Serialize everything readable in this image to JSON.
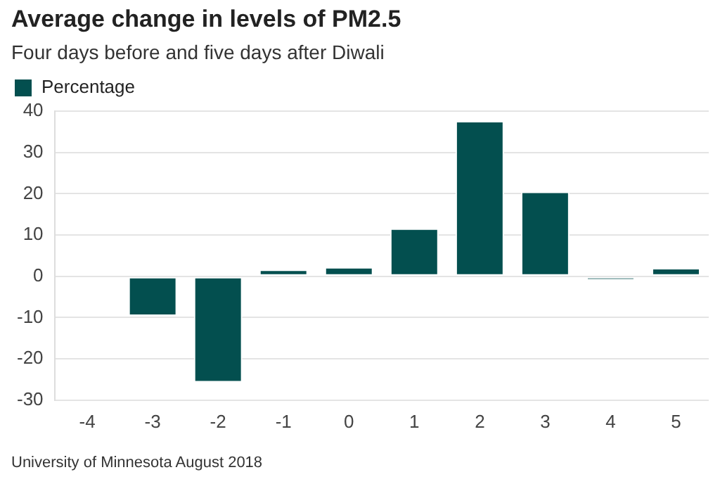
{
  "chart_data": {
    "type": "bar",
    "title": "Average change in levels of PM2.5",
    "subtitle": "Four days before and five days after Diwali",
    "categories": [
      "-4",
      "-3",
      "-2",
      "-1",
      "0",
      "1",
      "2",
      "3",
      "4",
      "5"
    ],
    "series": [
      {
        "name": "Percentage",
        "color": "#034f4f",
        "values": [
          0,
          -9.6,
          -25.7,
          1.6,
          2.2,
          11.6,
          37.6,
          20.5,
          -1.0,
          2.0
        ]
      }
    ],
    "ylim": [
      -30,
      40
    ],
    "yticks": [
      -30,
      -20,
      -10,
      0,
      10,
      20,
      30,
      40
    ],
    "grid": "y",
    "legend": "top left",
    "annotations": [
      "University of Minnesota August 2018"
    ]
  }
}
